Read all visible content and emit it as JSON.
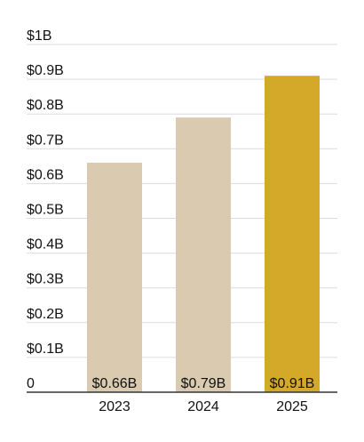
{
  "chart_data": {
    "type": "bar",
    "categories": [
      "2023",
      "2024",
      "2025"
    ],
    "values": [
      0.66,
      0.79,
      0.91
    ],
    "data_labels": [
      "$0.66B",
      "$0.79B",
      "$0.91B"
    ],
    "y_ticks": [
      {
        "value": 0,
        "label": "0"
      },
      {
        "value": 0.1,
        "label": "$0.1B"
      },
      {
        "value": 0.2,
        "label": "$0.2B"
      },
      {
        "value": 0.3,
        "label": "$0.3B"
      },
      {
        "value": 0.4,
        "label": "$0.4B"
      },
      {
        "value": 0.5,
        "label": "$0.5B"
      },
      {
        "value": 0.6,
        "label": "$0.6B"
      },
      {
        "value": 0.7,
        "label": "$0.7B"
      },
      {
        "value": 0.8,
        "label": "$0.8B"
      },
      {
        "value": 0.9,
        "label": "$0.9B"
      },
      {
        "value": 1.0,
        "label": "$1B"
      }
    ],
    "ylim": [
      0,
      1.0
    ],
    "grid": true,
    "colors": [
      "#d9cab0",
      "#d9cab0",
      "#d4a92a"
    ]
  }
}
